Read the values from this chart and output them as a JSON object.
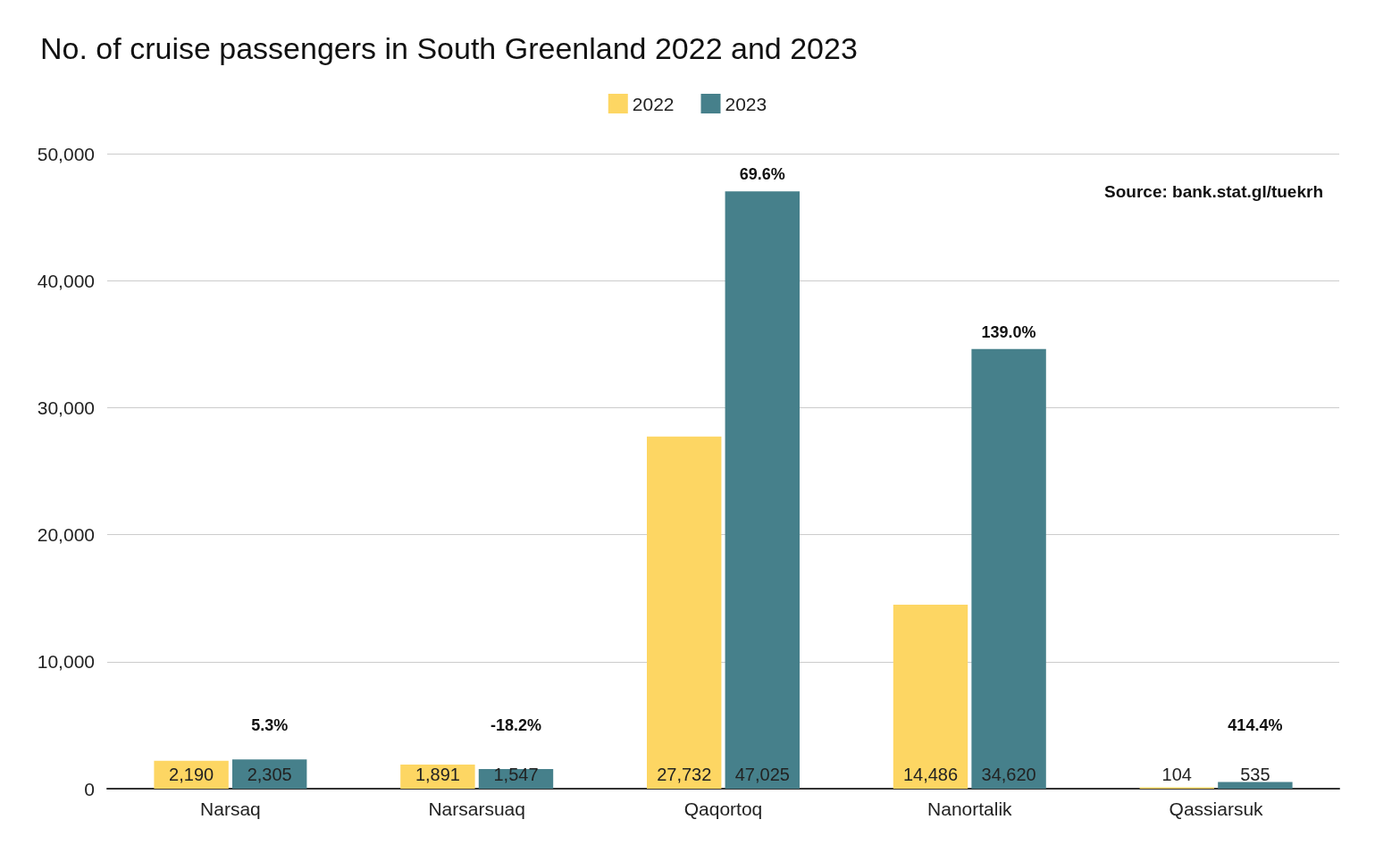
{
  "chart_data": {
    "type": "bar",
    "title": "No. of cruise passengers in South Greenland 2022 and 2023",
    "categories": [
      "Narsaq",
      "Narsarsuaq",
      "Qaqortoq",
      "Nanortalik",
      "Qassiarsuk"
    ],
    "series": [
      {
        "name": "2022",
        "color": "#fdd663",
        "values": [
          2190,
          1891,
          27732,
          14486,
          104
        ],
        "value_labels": [
          "2,190",
          "1,891",
          "27,732",
          "14,486",
          "104"
        ]
      },
      {
        "name": "2023",
        "color": "#46808b",
        "values": [
          2305,
          1547,
          47025,
          34620,
          535
        ],
        "value_labels": [
          "2,305",
          "1,547",
          "47,025",
          "34,620",
          "535"
        ]
      }
    ],
    "ylim": [
      0,
      50000
    ],
    "yticks": [
      0,
      {
        "value": 10000,
        "label": "10,000"
      },
      {
        "value": 20000,
        "label": "20,000"
      },
      {
        "value": 30000,
        "label": "30,000"
      },
      {
        "value": 40000,
        "label": "40,000"
      },
      {
        "value": 50000,
        "label": "50,000"
      }
    ],
    "grid": "y",
    "legend": "top",
    "annotations": [
      "5.3%",
      "-18.2%",
      "69.6%",
      "139.0%",
      "414.4%",
      "Source: bank.stat.gl/tuekrh"
    ]
  }
}
